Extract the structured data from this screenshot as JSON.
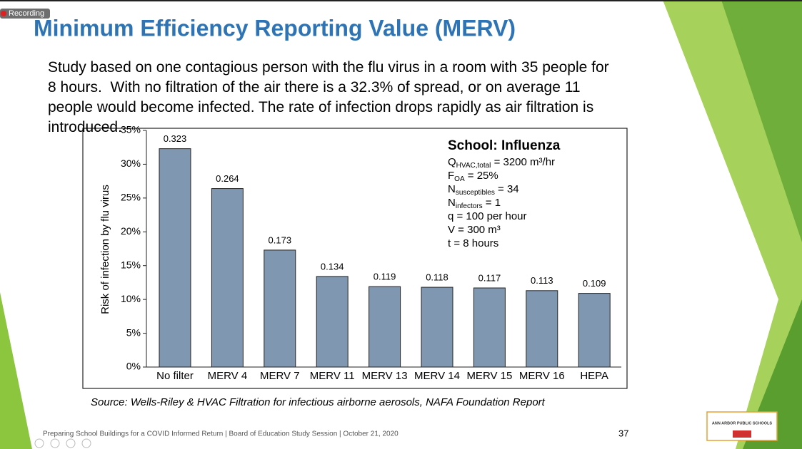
{
  "recording": "Recording",
  "slide": {
    "title": "Minimum Efficiency Reporting Value (MERV)",
    "body": [
      "Study based on one contagious person with the flu virus in a room with 35 people for",
      "8 hours.  With no filtration of the air there is a 32.3% of spread, or on average 11",
      "people would become infected. The rate of infection drops rapidly as air filtration is",
      "introduced."
    ],
    "source": "Source: Wells-Riley & HVAC Filtration for infectious airborne aerosols, NAFA Foundation Report",
    "footer": "Preparing School Buildings for a COVID Informed Return  |  Board of Education Study Session  |  October 21, 2020",
    "page_number": "37",
    "logo": "ANN ARBOR PUBLIC SCHOOLS"
  },
  "chart_data": {
    "type": "bar",
    "ylabel": "Risk of infection by flu virus",
    "categories": [
      "No filter",
      "MERV 4",
      "MERV 7",
      "MERV 11",
      "MERV 13",
      "MERV 14",
      "MERV 15",
      "MERV 16",
      "HEPA"
    ],
    "values": [
      32.3,
      26.4,
      17.3,
      13.4,
      11.9,
      11.8,
      11.7,
      11.3,
      10.9
    ],
    "value_labels": [
      "0.323",
      "0.264",
      "0.173",
      "0.134",
      "0.119",
      "0.118",
      "0.117",
      "0.113",
      "0.109"
    ],
    "color": "#7f97b0",
    "ylim": [
      0,
      35
    ],
    "yticks": [
      {
        "value": 0,
        "label": "0%"
      },
      {
        "value": 5,
        "label": "5%"
      },
      {
        "value": 10,
        "label": "10%"
      },
      {
        "value": 15,
        "label": "15%"
      },
      {
        "value": 20,
        "label": "20%"
      },
      {
        "value": 25,
        "label": "25%"
      },
      {
        "value": 30,
        "label": "30%"
      },
      {
        "value": 35,
        "label": "35%"
      }
    ],
    "annotation": {
      "title": "School: Influenza",
      "lines": [
        {
          "main": "Q",
          "sub": "HVAC,total",
          "rest": " = 3200 m³/hr"
        },
        {
          "main": "F",
          "sub": "OA",
          "rest": " = 25%"
        },
        {
          "main": "N",
          "sub": "susceptibles",
          "rest": " = 34"
        },
        {
          "main": "N",
          "sub": "infectors",
          "rest": " = 1"
        },
        {
          "main": "q = 100 per hour"
        },
        {
          "main": "V = 300 m³"
        },
        {
          "main": "t = 8 hours"
        }
      ]
    }
  }
}
